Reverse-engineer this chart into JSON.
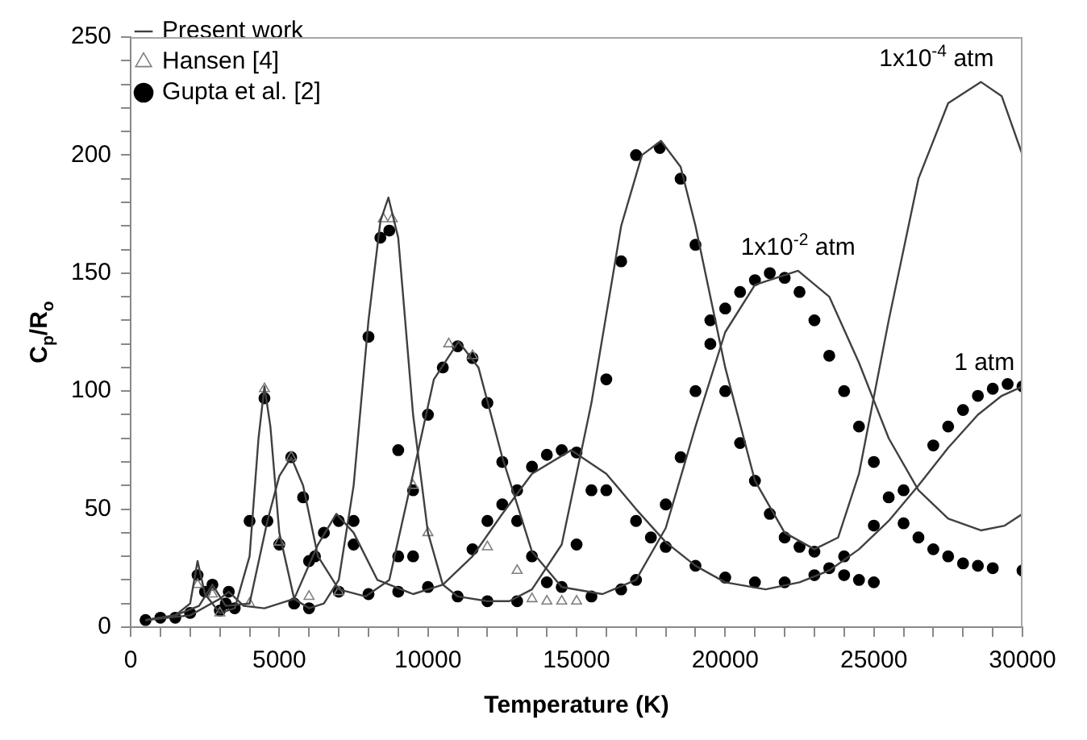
{
  "chart_data": {
    "type": "line",
    "xlabel": "Temperature (K)",
    "ylabel": "C$_{p}$/R$_{o}$",
    "xlim": [
      0,
      30000
    ],
    "xticks": [
      0,
      {
        "value": 1000,
        "label": null
      },
      {
        "value": 2000,
        "label": null
      },
      {
        "value": 3000,
        "label": null
      },
      {
        "value": 4000,
        "label": null
      },
      5000,
      {
        "value": 6000,
        "label": null
      },
      {
        "value": 7000,
        "label": null
      },
      {
        "value": 8000,
        "label": null
      },
      {
        "value": 9000,
        "label": null
      },
      10000,
      {
        "value": 11000,
        "label": null
      },
      {
        "value": 12000,
        "label": null
      },
      {
        "value": 13000,
        "label": null
      },
      {
        "value": 14000,
        "label": null
      },
      15000,
      {
        "value": 16000,
        "label": null
      },
      {
        "value": 17000,
        "label": null
      },
      {
        "value": 18000,
        "label": null
      },
      {
        "value": 19000,
        "label": null
      },
      20000,
      {
        "value": 21000,
        "label": null
      },
      {
        "value": 22000,
        "label": null
      },
      {
        "value": 23000,
        "label": null
      },
      {
        "value": 24000,
        "label": null
      },
      25000,
      {
        "value": 26000,
        "label": null
      },
      {
        "value": 27000,
        "label": null
      },
      {
        "value": 28000,
        "label": null
      },
      {
        "value": 29000,
        "label": null
      },
      30000
    ],
    "ylim": [
      0,
      250
    ],
    "yticks": [
      0,
      {
        "value": 10,
        "label": null
      },
      {
        "value": 20,
        "label": null
      },
      {
        "value": 30,
        "label": null
      },
      {
        "value": 40,
        "label": null
      },
      50,
      {
        "value": 60,
        "label": null
      },
      {
        "value": 70,
        "label": null
      },
      {
        "value": 80,
        "label": null
      },
      {
        "value": 90,
        "label": null
      },
      100,
      {
        "value": 110,
        "label": null
      },
      {
        "value": 120,
        "label": null
      },
      {
        "value": 130,
        "label": null
      },
      {
        "value": 140,
        "label": null
      },
      150,
      {
        "value": 160,
        "label": null
      },
      {
        "value": 170,
        "label": null
      },
      {
        "value": 180,
        "label": null
      },
      {
        "value": 190,
        "label": null
      },
      200,
      {
        "value": 210,
        "label": null
      },
      {
        "value": 220,
        "label": null
      },
      {
        "value": 230,
        "label": null
      },
      {
        "value": 240,
        "label": null
      },
      250
    ],
    "grid": false,
    "legend": "top left",
    "series": [
      {
        "name": "Present work",
        "type": "line",
        "color": "#404040",
        "marker": "none",
        "x": [
          500,
          1000,
          1500,
          2000,
          2250,
          2500,
          3000,
          3500,
          4000,
          4300,
          4500,
          4700,
          5000,
          5500,
          6000,
          6500,
          7000,
          7500,
          8000,
          8400,
          8670,
          9000,
          9500,
          10000,
          10500,
          11000,
          12000,
          12740,
          13500,
          14500,
          15500,
          16500,
          17200,
          17840,
          18500,
          19000,
          20000,
          21000,
          22000,
          23000,
          23800,
          24500,
          25500,
          26500,
          27500,
          28600,
          29300,
          30000
        ],
        "values": [
          3,
          4,
          5,
          10,
          28,
          14,
          6,
          8,
          30,
          80,
          102,
          85,
          40,
          12,
          8,
          10,
          20,
          60,
          130,
          172,
          182,
          165,
          90,
          40,
          18,
          13,
          11,
          11,
          16,
          35,
          95,
          170,
          200,
          206,
          195,
          170,
          110,
          62,
          40,
          33,
          38,
          65,
          130,
          190,
          222,
          231,
          225,
          200
        ]
      },
      {
        "type": "line",
        "color": "#404040",
        "marker": "none",
        "x": [
          500,
          1500,
          2300,
          2750,
          3200,
          4000,
          4600,
          5000,
          5400,
          5800,
          6300,
          7000,
          7900,
          8700,
          9500,
          10200,
          11030,
          11700,
          12500,
          13500,
          14500,
          15870,
          17000,
          18000,
          19000,
          20000,
          21000,
          22450,
          23500,
          24500,
          25500,
          26500,
          27500,
          28600,
          29400,
          30000
        ],
        "values": [
          3,
          5,
          9,
          18,
          9,
          10,
          45,
          64,
          72,
          60,
          30,
          16,
          13,
          20,
          65,
          105,
          121,
          110,
          72,
          32,
          17,
          14,
          20,
          42,
          85,
          125,
          145,
          151,
          140,
          112,
          80,
          58,
          46,
          41,
          43,
          48
        ]
      },
      {
        "type": "line",
        "color": "#404040",
        "marker": "none",
        "x": [
          500,
          2000,
          3000,
          3300,
          3800,
          4500,
          5500,
          6300,
          6920,
          7500,
          8300,
          9500,
          10500,
          11500,
          12500,
          13500,
          14820,
          16000,
          17000,
          18000,
          19000,
          20000,
          21360,
          22500,
          23500,
          24500,
          25500,
          26500,
          27500,
          28500,
          29300,
          30000
        ],
        "values": [
          3,
          5,
          12,
          15,
          9,
          8,
          12,
          35,
          48,
          40,
          20,
          14,
          18,
          30,
          48,
          65,
          75,
          65,
          50,
          36,
          26,
          19,
          16,
          19,
          24,
          33,
          45,
          60,
          76,
          90,
          98,
          102
        ]
      },
      {
        "name": "Hansen [4]",
        "type": "scatter",
        "color": "#7f7f7f",
        "marker": "triangle",
        "x": [
          2250,
          2750,
          3000,
          4000,
          4500,
          5000,
          5400,
          6000,
          7000,
          8500,
          8800,
          9500,
          10000,
          10700,
          11500,
          12000,
          13000,
          13500,
          14000,
          14500,
          15000
        ],
        "values": [
          18,
          14,
          6,
          10,
          101,
          36,
          72,
          13,
          15,
          173,
          173,
          60,
          40,
          120,
          115,
          34,
          24,
          12,
          11,
          11,
          11
        ]
      },
      {
        "name": "Gupta et al. [2]",
        "type": "scatter",
        "color": "#000000",
        "marker": "circle",
        "x": [
          500,
          1000,
          1500,
          2000,
          2250,
          2500,
          3000,
          3500,
          4000,
          4500,
          5000,
          5500,
          6000,
          7000,
          7500,
          8000,
          8400,
          8700,
          9000,
          9500,
          10000,
          11000,
          12000,
          13000,
          14000,
          15000,
          15500,
          16000,
          16500,
          17000,
          17800,
          18500,
          19000,
          19500,
          20000,
          20500,
          21000,
          21500,
          22000,
          22500,
          23000,
          23500,
          24000,
          24500,
          25000,
          2750,
          3200,
          4600,
          5400,
          5800,
          6200,
          8000,
          9000,
          9500,
          10000,
          10500,
          11000,
          11500,
          12000,
          12500,
          13000,
          13500,
          14500,
          15500,
          16500,
          17000,
          17500,
          18000,
          18500,
          19000,
          19500,
          20000,
          20500,
          21000,
          21500,
          22000,
          22500,
          23000,
          23500,
          24000,
          24500,
          25000,
          25500,
          26000,
          26500,
          27000,
          27500,
          28000,
          28500,
          29000,
          30000,
          3300,
          6000,
          6500,
          7000,
          7500,
          9000,
          11500,
          12000,
          12500,
          13000,
          13500,
          14000,
          14500,
          15000,
          16000,
          17000,
          18000,
          19000,
          20000,
          21000,
          22000,
          23000,
          24000,
          25000,
          26000,
          27000,
          27500,
          28000,
          28500,
          29000,
          29500,
          30000
        ],
        "values": [
          3,
          4,
          4,
          6,
          22,
          15,
          7,
          8,
          45,
          97,
          35,
          10,
          8,
          15,
          45,
          123,
          165,
          168,
          75,
          30,
          17,
          13,
          11,
          11,
          19,
          35,
          58,
          105,
          155,
          200,
          203,
          190,
          162,
          130,
          100,
          78,
          62,
          48,
          38,
          34,
          32,
          25,
          22,
          20,
          19,
          18,
          10,
          45,
          72,
          55,
          30,
          14,
          30,
          58,
          90,
          110,
          119,
          114,
          95,
          70,
          45,
          30,
          17,
          13,
          16,
          20,
          38,
          52,
          72,
          100,
          120,
          135,
          142,
          147,
          150,
          148,
          142,
          130,
          115,
          100,
          85,
          70,
          55,
          44,
          38,
          33,
          30,
          27,
          26,
          25,
          24,
          15,
          28,
          40,
          45,
          35,
          15,
          33,
          45,
          52,
          58,
          68,
          73,
          75,
          74,
          58,
          45,
          34,
          26,
          21,
          19,
          19,
          22,
          30,
          43,
          58,
          77,
          85,
          92,
          98,
          101,
          103,
          102
        ]
      }
    ],
    "annotations": [
      {
        "text": "1x10$^{-4}$ atm",
        "x": 28600,
        "y": 231
      },
      {
        "text": "1x10$^{-2}$ atm",
        "x": 22450,
        "y": 151
      },
      {
        "text": "1 atm",
        "x": 29300,
        "y": 102
      }
    ]
  }
}
